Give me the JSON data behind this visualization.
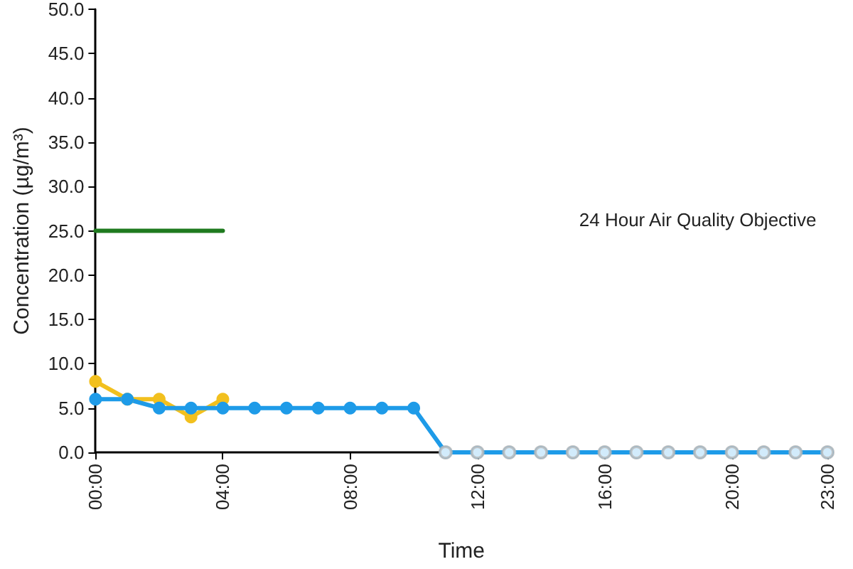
{
  "chart_data": {
    "type": "line",
    "xlabel": "Time",
    "ylabel": "Concentration (µg/m³)",
    "xlim": [
      0,
      23
    ],
    "xticks": [
      {
        "value": 0,
        "label": "00:00"
      },
      {
        "value": 4,
        "label": "04:00"
      },
      {
        "value": 8,
        "label": "08:00"
      },
      {
        "value": 12,
        "label": "12:00"
      },
      {
        "value": 16,
        "label": "16:00"
      },
      {
        "value": 20,
        "label": "20:00"
      },
      {
        "value": 23,
        "label": "23:00"
      }
    ],
    "ylim": [
      0,
      50
    ],
    "yticks": [
      {
        "value": 0,
        "label": "0.0"
      },
      {
        "value": 5,
        "label": "5.0"
      },
      {
        "value": 10,
        "label": "10.0"
      },
      {
        "value": 15,
        "label": "15.0"
      },
      {
        "value": 20,
        "label": "20.0"
      },
      {
        "value": 25,
        "label": "25.0"
      },
      {
        "value": 30,
        "label": "30.0"
      },
      {
        "value": 35,
        "label": "35.0"
      },
      {
        "value": 40,
        "label": "40.0"
      },
      {
        "value": 45,
        "label": "45.0"
      },
      {
        "value": 50,
        "label": "50.0"
      }
    ],
    "series": [
      {
        "color": "#1f7a1f",
        "marker": "none",
        "x": [
          0,
          4
        ],
        "values": [
          25,
          25
        ]
      },
      {
        "color": "#f2c01e",
        "x": [
          0,
          1,
          2,
          3,
          4
        ],
        "values": [
          8,
          6,
          6,
          4,
          6
        ]
      },
      {
        "color": "#1e9be8",
        "x": [
          0,
          1,
          2,
          3,
          4,
          5,
          6,
          7,
          8,
          9,
          10,
          11,
          12,
          13,
          14,
          15,
          16,
          17,
          18,
          19,
          20,
          21,
          22,
          23
        ],
        "values": [
          6,
          6,
          5,
          5,
          5,
          5,
          5,
          5,
          5,
          5,
          5,
          0,
          0,
          0,
          0,
          0,
          0,
          0,
          0,
          0,
          0,
          0,
          0,
          0
        ]
      },
      {
        "type": "scatter",
        "color": "#b8b8b8",
        "x": [
          11,
          12,
          13,
          14,
          15,
          16,
          17,
          18,
          19,
          20,
          21,
          22,
          23
        ],
        "values": [
          0,
          0,
          0,
          0,
          0,
          0,
          0,
          0,
          0,
          0,
          0,
          0,
          0
        ]
      }
    ],
    "annotations": [
      "24 Hour Air Quality Objective"
    ],
    "marker": "circle",
    "line_style": "solid",
    "grid": false
  }
}
